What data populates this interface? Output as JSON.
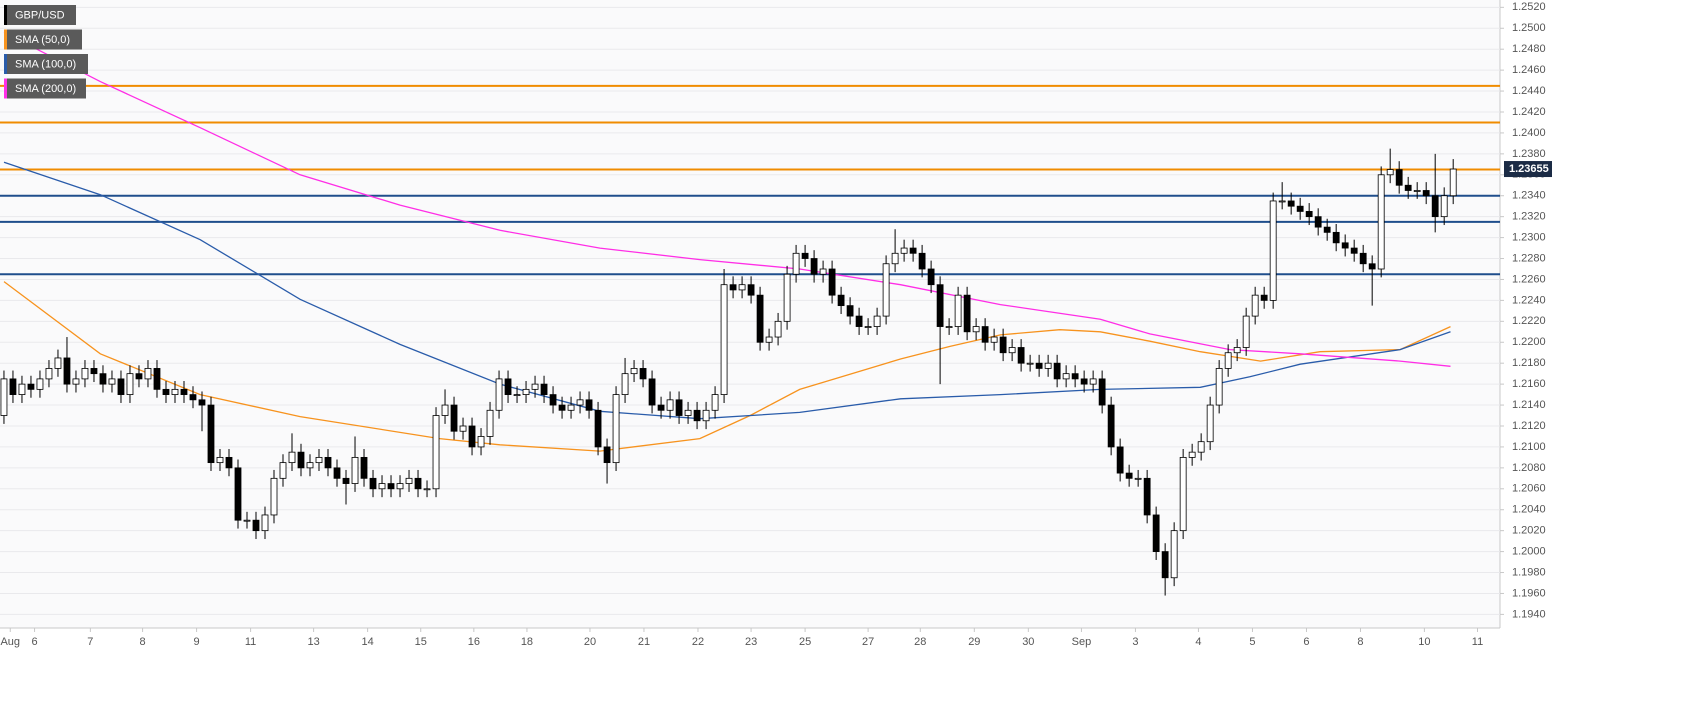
{
  "chart_data": {
    "type": "candlestick",
    "ohlc": {
      "name": "GBP/USD",
      "up_color": "#ffffff",
      "down_color": "#000000",
      "open": [
        1.213,
        1.2165,
        1.215,
        1.216,
        1.2155,
        1.2165,
        1.2175,
        1.2185,
        1.216,
        1.2165,
        1.2175,
        1.217,
        1.216,
        1.2165,
        1.215,
        1.217,
        1.2165,
        1.2175,
        1.2155,
        1.215,
        1.2155,
        1.215,
        1.2145,
        1.214,
        1.2085,
        1.209,
        1.208,
        1.203,
        1.203,
        1.202,
        1.2035,
        1.207,
        1.2085,
        1.2095,
        1.208,
        1.2085,
        1.209,
        1.208,
        1.207,
        1.2065,
        1.209,
        1.207,
        1.206,
        1.2065,
        1.206,
        1.2065,
        1.207,
        1.206,
        1.206,
        1.213,
        1.214,
        1.2115,
        1.212,
        1.21,
        1.211,
        1.2135,
        1.2165,
        1.215,
        1.215,
        1.2155,
        1.216,
        1.215,
        1.214,
        1.2135,
        1.214,
        1.2145,
        1.2135,
        1.21,
        1.2085,
        1.215,
        1.217,
        1.2175,
        1.2165,
        1.214,
        1.2135,
        1.2145,
        1.213,
        1.2135,
        1.2125,
        1.2135,
        1.215,
        1.2255,
        1.225,
        1.2255,
        1.2245,
        1.22,
        1.2205,
        1.222,
        1.2265,
        1.2285,
        1.228,
        1.2265,
        1.227,
        1.2245,
        1.2235,
        1.2225,
        1.2215,
        1.2215,
        1.2225,
        1.2275,
        1.2285,
        1.229,
        1.2285,
        1.227,
        1.2255,
        1.2215,
        1.2215,
        1.2245,
        1.221,
        1.2215,
        1.22,
        1.2205,
        1.219,
        1.2195,
        1.218,
        1.218,
        1.2175,
        1.218,
        1.2165,
        1.217,
        1.2165,
        1.216,
        1.2165,
        1.214,
        1.21,
        1.2075,
        1.207,
        1.207,
        1.2035,
        1.2,
        1.1975,
        1.202,
        1.209,
        1.2095,
        1.2105,
        1.214,
        1.2175,
        1.219,
        1.2195,
        1.2225,
        1.2245,
        1.224,
        1.2335,
        1.2335,
        1.233,
        1.2325,
        1.232,
        1.231,
        1.2305,
        1.2295,
        1.229,
        1.2285,
        1.2275,
        1.227,
        1.236,
        1.2365,
        1.235,
        1.2345,
        1.2345,
        1.234,
        1.232,
        1.234
      ],
      "high": [
        1.2173,
        1.2173,
        1.2168,
        1.2168,
        1.2173,
        1.2183,
        1.2193,
        1.2205,
        1.2173,
        1.2183,
        1.2183,
        1.2178,
        1.2173,
        1.2173,
        1.2178,
        1.2178,
        1.2183,
        1.2183,
        1.2163,
        1.2163,
        1.2163,
        1.2158,
        1.2153,
        1.2148,
        1.2098,
        1.2098,
        1.2088,
        1.2038,
        1.2038,
        1.2043,
        1.2078,
        1.2093,
        1.2113,
        1.2103,
        1.2093,
        1.2098,
        1.2098,
        1.2088,
        1.2078,
        1.211,
        1.2098,
        1.2078,
        1.2073,
        1.2073,
        1.2073,
        1.2078,
        1.2078,
        1.2068,
        1.2138,
        1.2155,
        1.2148,
        1.2128,
        1.2128,
        1.2118,
        1.2143,
        1.2173,
        1.2173,
        1.2158,
        1.2163,
        1.2168,
        1.2168,
        1.2158,
        1.2148,
        1.2148,
        1.2153,
        1.2153,
        1.2143,
        1.2108,
        1.2158,
        1.2185,
        1.2183,
        1.2183,
        1.2173,
        1.2148,
        1.2153,
        1.2153,
        1.2143,
        1.2143,
        1.2143,
        1.2158,
        1.227,
        1.2263,
        1.2263,
        1.2263,
        1.2253,
        1.2213,
        1.2228,
        1.2273,
        1.2293,
        1.2293,
        1.2288,
        1.2278,
        1.2278,
        1.2253,
        1.2243,
        1.2233,
        1.2223,
        1.2233,
        1.2283,
        1.2308,
        1.2298,
        1.2298,
        1.2293,
        1.2278,
        1.2263,
        1.2223,
        1.2253,
        1.2253,
        1.2223,
        1.2223,
        1.2213,
        1.2213,
        1.2203,
        1.2203,
        1.2188,
        1.2188,
        1.2188,
        1.2188,
        1.2178,
        1.2178,
        1.2173,
        1.2173,
        1.2173,
        1.2148,
        1.2108,
        1.2083,
        1.2078,
        1.2078,
        1.2043,
        1.2008,
        1.2028,
        1.2098,
        1.2103,
        1.2113,
        1.2148,
        1.2183,
        1.2198,
        1.2203,
        1.2233,
        1.2253,
        1.2253,
        1.2343,
        1.2353,
        1.2343,
        1.2338,
        1.2333,
        1.2328,
        1.2318,
        1.2313,
        1.2303,
        1.2298,
        1.2293,
        1.2283,
        1.2368,
        1.2385,
        1.2373,
        1.2358,
        1.2353,
        1.2353,
        1.238,
        1.2348,
        1.2375
      ],
      "low": [
        1.2122,
        1.2142,
        1.2142,
        1.2147,
        1.2147,
        1.2157,
        1.2167,
        1.2152,
        1.2152,
        1.2157,
        1.2162,
        1.2152,
        1.2152,
        1.2142,
        1.2142,
        1.2157,
        1.2157,
        1.2147,
        1.2142,
        1.2142,
        1.2142,
        1.2137,
        1.2115,
        1.2077,
        1.2077,
        1.2072,
        1.2022,
        1.2022,
        1.2012,
        1.2012,
        1.2027,
        1.2062,
        1.2077,
        1.2072,
        1.2072,
        1.2077,
        1.2072,
        1.2062,
        1.2045,
        1.2057,
        1.2062,
        1.2052,
        1.2052,
        1.2052,
        1.2052,
        1.2057,
        1.2052,
        1.2052,
        1.2052,
        1.2122,
        1.2107,
        1.2107,
        1.2092,
        1.2092,
        1.2102,
        1.2127,
        1.2142,
        1.2142,
        1.2142,
        1.2147,
        1.2142,
        1.2132,
        1.2127,
        1.2127,
        1.2132,
        1.2127,
        1.2092,
        1.2065,
        1.2077,
        1.2142,
        1.2162,
        1.2157,
        1.2132,
        1.2127,
        1.2127,
        1.2122,
        1.2122,
        1.2117,
        1.2117,
        1.2127,
        1.2142,
        1.2242,
        1.2242,
        1.2237,
        1.2192,
        1.2192,
        1.2197,
        1.2212,
        1.2257,
        1.2272,
        1.2257,
        1.2257,
        1.2237,
        1.2227,
        1.2217,
        1.2207,
        1.2207,
        1.2207,
        1.2217,
        1.2267,
        1.2277,
        1.2277,
        1.2262,
        1.2247,
        1.216,
        1.2207,
        1.2207,
        1.2202,
        1.2202,
        1.2192,
        1.2192,
        1.2182,
        1.2182,
        1.2172,
        1.2172,
        1.2167,
        1.2167,
        1.2157,
        1.2157,
        1.2157,
        1.2152,
        1.2152,
        1.2132,
        1.2092,
        1.2067,
        1.2062,
        1.2062,
        1.2027,
        1.1992,
        1.1958,
        1.1967,
        1.2012,
        1.2082,
        1.2087,
        1.2097,
        1.2132,
        1.2167,
        1.2182,
        1.2187,
        1.2217,
        1.2232,
        1.2232,
        1.2327,
        1.2322,
        1.2317,
        1.2312,
        1.2302,
        1.2297,
        1.2287,
        1.2282,
        1.2277,
        1.2267,
        1.2235,
        1.2262,
        1.2352,
        1.2342,
        1.2337,
        1.2337,
        1.2332,
        1.2305,
        1.2312,
        1.2332
      ],
      "close": [
        1.2165,
        1.215,
        1.216,
        1.2155,
        1.2165,
        1.2175,
        1.2185,
        1.216,
        1.2165,
        1.2175,
        1.217,
        1.216,
        1.2165,
        1.215,
        1.217,
        1.2165,
        1.2175,
        1.2155,
        1.215,
        1.2155,
        1.215,
        1.2145,
        1.214,
        1.2085,
        1.209,
        1.208,
        1.203,
        1.203,
        1.202,
        1.2035,
        1.207,
        1.2085,
        1.2095,
        1.208,
        1.2085,
        1.209,
        1.208,
        1.207,
        1.2065,
        1.209,
        1.207,
        1.206,
        1.2065,
        1.206,
        1.2065,
        1.207,
        1.206,
        1.206,
        1.213,
        1.214,
        1.2115,
        1.212,
        1.21,
        1.211,
        1.2135,
        1.2165,
        1.215,
        1.215,
        1.2155,
        1.216,
        1.215,
        1.214,
        1.2135,
        1.214,
        1.2145,
        1.2135,
        1.21,
        1.2085,
        1.215,
        1.217,
        1.2175,
        1.2165,
        1.214,
        1.2135,
        1.2145,
        1.213,
        1.2135,
        1.2125,
        1.2135,
        1.215,
        1.2255,
        1.225,
        1.2255,
        1.2245,
        1.22,
        1.2205,
        1.222,
        1.2265,
        1.2285,
        1.228,
        1.2265,
        1.227,
        1.2245,
        1.2235,
        1.2225,
        1.2215,
        1.2215,
        1.2225,
        1.2275,
        1.2285,
        1.229,
        1.2285,
        1.227,
        1.2255,
        1.2215,
        1.2215,
        1.2245,
        1.221,
        1.2215,
        1.22,
        1.2205,
        1.219,
        1.2195,
        1.218,
        1.218,
        1.2175,
        1.218,
        1.2165,
        1.217,
        1.2165,
        1.216,
        1.2165,
        1.214,
        1.21,
        1.2075,
        1.207,
        1.207,
        1.2035,
        1.2,
        1.1975,
        1.202,
        1.209,
        1.2095,
        1.2105,
        1.214,
        1.2175,
        1.219,
        1.2195,
        1.2225,
        1.2245,
        1.224,
        1.2335,
        1.2335,
        1.233,
        1.2325,
        1.232,
        1.231,
        1.2305,
        1.2295,
        1.229,
        1.2285,
        1.2275,
        1.227,
        1.236,
        1.2365,
        1.235,
        1.2345,
        1.2345,
        1.234,
        1.232,
        1.234,
        1.23655
      ]
    },
    "series": [
      {
        "name": "SMA (50,0)",
        "color": "#f7931e",
        "x": [
          0,
          10.7,
          21.8,
          32.9,
          48.4,
          55.1,
          66.2,
          77.3,
          82.9,
          88.4,
          99.6,
          105.1,
          110.7,
          117.3,
          121.8,
          127.3,
          132.9,
          139.6,
          146.2,
          155.1,
          160.7
        ],
        "values": [
          1.2258,
          1.2189,
          1.215,
          1.2129,
          1.2108,
          1.2102,
          1.2096,
          1.2108,
          1.213,
          1.2155,
          1.2184,
          1.2196,
          1.2207,
          1.2212,
          1.221,
          1.2201,
          1.2191,
          1.2182,
          1.2191,
          1.2193,
          1.2215
        ]
      },
      {
        "name": "SMA (100,0)",
        "color": "#2a5caa",
        "x": [
          0,
          10.7,
          21.8,
          32.9,
          44,
          55.1,
          66.2,
          77.3,
          88.4,
          99.6,
          110.7,
          121.8,
          132.9,
          138.4,
          144,
          155.1,
          160.7
        ],
        "values": [
          1.2372,
          1.2341,
          1.2298,
          1.2241,
          1.2198,
          1.216,
          1.2134,
          1.2127,
          1.2133,
          1.2146,
          1.215,
          1.2155,
          1.2157,
          1.2167,
          1.2179,
          1.2193,
          1.221
        ]
      },
      {
        "name": "SMA (200,0)",
        "color": "#ff2ee6",
        "x": [
          0,
          10.7,
          21.8,
          32.9,
          44,
          55.1,
          66.2,
          77.3,
          88.4,
          99.6,
          110.7,
          121.8,
          127.3,
          136.2,
          144,
          155.1,
          160.7
        ],
        "values": [
          1.2496,
          1.2449,
          1.2405,
          1.236,
          1.2331,
          1.2307,
          1.229,
          1.2279,
          1.227,
          1.2255,
          1.2236,
          1.2222,
          1.2208,
          1.2193,
          1.2189,
          1.2182,
          1.2177
        ]
      }
    ],
    "resistance_levels": {
      "color": "#f08c00",
      "values": [
        1.2445,
        1.241,
        1.2365
      ]
    },
    "support_levels": {
      "color": "#1f4e8c",
      "values": [
        1.234,
        1.2315,
        1.2265
      ]
    },
    "last_price_color": "#1b2b45",
    "xlim": [
      -0.44,
      166.2
    ],
    "xticks": [
      {
        "value": 0.7,
        "label": "Aug"
      },
      {
        "value": 3.4,
        "label": "6"
      },
      {
        "value": 9.6,
        "label": "7"
      },
      {
        "value": 15.4,
        "label": "8"
      },
      {
        "value": 21.4,
        "label": "9"
      },
      {
        "value": 27.4,
        "label": "11"
      },
      {
        "value": 34.4,
        "label": "13"
      },
      {
        "value": 40.4,
        "label": "14"
      },
      {
        "value": 46.3,
        "label": "15"
      },
      {
        "value": 52.2,
        "label": "16"
      },
      {
        "value": 58.1,
        "label": "18"
      },
      {
        "value": 65.1,
        "label": "20"
      },
      {
        "value": 71.1,
        "label": "21"
      },
      {
        "value": 77.1,
        "label": "22"
      },
      {
        "value": 83,
        "label": "23"
      },
      {
        "value": 89,
        "label": "25"
      },
      {
        "value": 96,
        "label": "27"
      },
      {
        "value": 101.8,
        "label": "28"
      },
      {
        "value": 107.8,
        "label": "29"
      },
      {
        "value": 113.8,
        "label": "30"
      },
      {
        "value": 119.7,
        "label": "Sep"
      },
      {
        "value": 125.7,
        "label": "3"
      },
      {
        "value": 132.7,
        "label": "4"
      },
      {
        "value": 138.7,
        "label": "5"
      },
      {
        "value": 144.7,
        "label": "6"
      },
      {
        "value": 150.7,
        "label": "8"
      },
      {
        "value": 157.8,
        "label": "10"
      },
      {
        "value": 163.7,
        "label": "11"
      }
    ],
    "ylim": [
      1.1927,
      1.2527
    ],
    "yticks": [
      {
        "value": 1.194,
        "label": "1.1940"
      },
      {
        "value": 1.196,
        "label": "1.1960"
      },
      {
        "value": 1.198,
        "label": "1.1980"
      },
      {
        "value": 1.2,
        "label": "1.2000"
      },
      {
        "value": 1.202,
        "label": "1.2020"
      },
      {
        "value": 1.204,
        "label": "1.2040"
      },
      {
        "value": 1.206,
        "label": "1.2060"
      },
      {
        "value": 1.208,
        "label": "1.2080"
      },
      {
        "value": 1.21,
        "label": "1.2100"
      },
      {
        "value": 1.212,
        "label": "1.2120"
      },
      {
        "value": 1.214,
        "label": "1.2140"
      },
      {
        "value": 1.216,
        "label": "1.2160"
      },
      {
        "value": 1.218,
        "label": "1.2180"
      },
      {
        "value": 1.22,
        "label": "1.2200"
      },
      {
        "value": 1.222,
        "label": "1.2220"
      },
      {
        "value": 1.224,
        "label": "1.2240"
      },
      {
        "value": 1.226,
        "label": "1.2260"
      },
      {
        "value": 1.228,
        "label": "1.2280"
      },
      {
        "value": 1.23,
        "label": "1.2300"
      },
      {
        "value": 1.232,
        "label": "1.2320"
      },
      {
        "value": 1.234,
        "label": "1.2340"
      },
      {
        "value": 1.236,
        "label": "1.2360"
      },
      {
        "value": 1.238,
        "label": "1.2380"
      },
      {
        "value": 1.24,
        "label": "1.2400"
      },
      {
        "value": 1.242,
        "label": "1.2420"
      },
      {
        "value": 1.244,
        "label": "1.2440"
      },
      {
        "value": 1.246,
        "label": "1.2460"
      },
      {
        "value": 1.248,
        "label": "1.2480"
      },
      {
        "value": 1.25,
        "label": "1.2500"
      },
      {
        "value": 1.252,
        "label": "1.2520"
      }
    ],
    "grid": true
  }
}
